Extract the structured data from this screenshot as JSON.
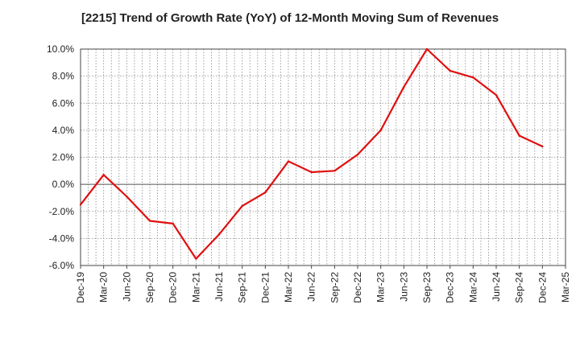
{
  "chart_data": {
    "type": "line",
    "title": "[2215]  Trend of Growth Rate (YoY) of 12-Month Moving Sum of Revenues",
    "xlabel": "",
    "ylabel": "",
    "ylim": [
      -6.0,
      10.0
    ],
    "y_ticks": [
      "10.0%",
      "8.0%",
      "6.0%",
      "4.0%",
      "2.0%",
      "0.0%",
      "-2.0%",
      "-4.0%",
      "-6.0%"
    ],
    "y_tick_values": [
      10,
      8,
      6,
      4,
      2,
      0,
      -2,
      -4,
      -6
    ],
    "x_tick_labels": [
      "Dec-19",
      "Mar-20",
      "Jun-20",
      "Sep-20",
      "Dec-20",
      "Mar-21",
      "Jun-21",
      "Sep-21",
      "Dec-21",
      "Mar-22",
      "Jun-22",
      "Sep-22",
      "Dec-22",
      "Mar-23",
      "Jun-23",
      "Sep-23",
      "Dec-23",
      "Mar-24",
      "Jun-24",
      "Sep-24",
      "Dec-24",
      "Mar-25"
    ],
    "grid": true,
    "line_color": "#e01010",
    "series": [
      {
        "x": [
          "Dec-19",
          "Mar-20",
          "Jun-20",
          "Sep-20",
          "Dec-20",
          "Mar-21",
          "Jun-21",
          "Sep-21",
          "Dec-21",
          "Mar-22",
          "Jun-22",
          "Sep-22",
          "Dec-22",
          "Mar-23",
          "Jun-23",
          "Sep-23",
          "Dec-23",
          "Mar-24",
          "Jun-24",
          "Sep-24",
          "Dec-24"
        ],
        "values": [
          -1.5,
          0.7,
          -0.9,
          -2.7,
          -2.9,
          -5.5,
          -3.7,
          -1.6,
          -0.6,
          1.7,
          0.9,
          1.0,
          2.2,
          4.0,
          7.2,
          10.0,
          8.4,
          7.9,
          6.6,
          3.6,
          2.8
        ]
      }
    ]
  }
}
